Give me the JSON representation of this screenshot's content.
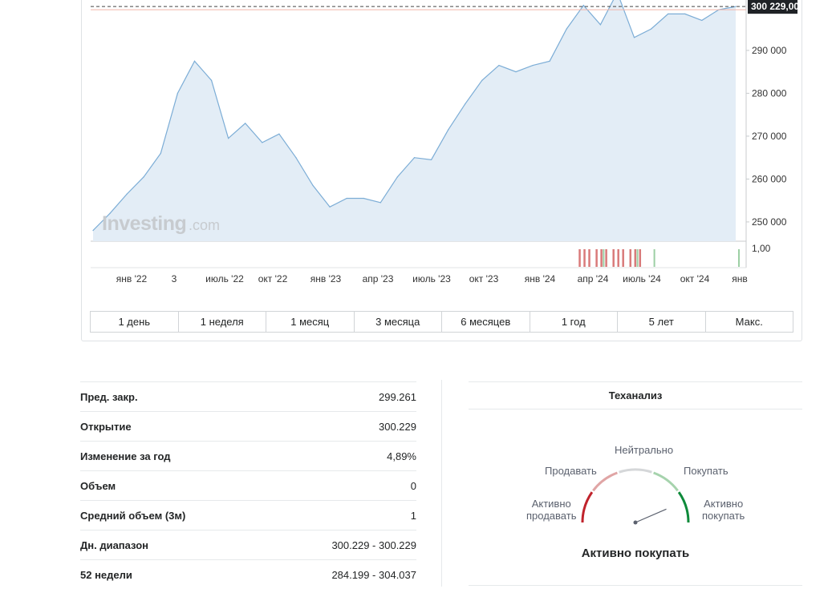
{
  "chart": {
    "current_price_label": "300 229,00",
    "y_ticks": [
      "290 000",
      "280 000",
      "270 000",
      "260 000",
      "250 000"
    ],
    "volume_tick": "1,00",
    "x_ticks": [
      "янв '22",
      "3",
      "июль '22",
      "окт '22",
      "янв '23",
      "апр '23",
      "июль '23",
      "окт '23",
      "янв '24",
      "апр '24",
      "июль '24",
      "окт '24",
      "янв"
    ],
    "watermark": "Investing",
    "watermark_suffix": ".com",
    "colors": {
      "line": "#7cadd6",
      "area": "#e3edf6",
      "up_bar": "#9ccfa4",
      "down_bar": "#d97a7a",
      "price_label_bg": "#1f2226"
    }
  },
  "chart_data": {
    "type": "area",
    "x": [
      "2021-11",
      "2021-12",
      "2022-01",
      "2022-02",
      "2022-03",
      "2022-04",
      "2022-05",
      "2022-06",
      "2022-07",
      "2022-08",
      "2022-09",
      "2022-10",
      "2022-11",
      "2022-12",
      "2023-01",
      "2023-02",
      "2023-03",
      "2023-04",
      "2023-05",
      "2023-06",
      "2023-07",
      "2023-08",
      "2023-09",
      "2023-10",
      "2023-11",
      "2023-12",
      "2024-01",
      "2024-02",
      "2024-03",
      "2024-04",
      "2024-05",
      "2024-06",
      "2024-07",
      "2024-08",
      "2024-09",
      "2024-10",
      "2024-11",
      "2024-12",
      "2025-01"
    ],
    "series": [
      {
        "values": [
          248000,
          252000,
          256500,
          260500,
          266000,
          280000,
          287500,
          283000,
          269500,
          273000,
          268500,
          270500,
          265000,
          258500,
          253500,
          255500,
          255500,
          254500,
          260500,
          265000,
          264500,
          271500,
          277500,
          283000,
          286500,
          285000,
          286500,
          287500,
          295000,
          300500,
          296000,
          303500,
          293000,
          295000,
          298500,
          298500,
          297000,
          299500,
          300229
        ]
      }
    ],
    "y_ticks": [
      250000,
      260000,
      270000,
      280000,
      290000
    ],
    "ylim": [
      245500,
      302500
    ],
    "grid": false,
    "current_value": 300229,
    "volume_indicator": {
      "y_ticks": [
        1.0
      ],
      "down_months": [
        "2024-04",
        "2024-05",
        "2024-06",
        "2024-07"
      ],
      "up_months": [
        "2024-05",
        "2024-07",
        "2024-08",
        "2025-01"
      ]
    }
  },
  "periods": [
    "1 день",
    "1 неделя",
    "1 месяц",
    "3 месяца",
    "6 месяцев",
    "1 год",
    "5 лет",
    "Макс."
  ],
  "stats": [
    {
      "label": "Пред. закр.",
      "value": "299.261"
    },
    {
      "label": "Открытие",
      "value": "300.229"
    },
    {
      "label": "Изменение за год",
      "value": "4,89%"
    },
    {
      "label": "Объем",
      "value": "0"
    },
    {
      "label": "Средний объем (3м)",
      "value": "1"
    },
    {
      "label": "Дн. диапазон",
      "value": "300.229 - 300.229"
    },
    {
      "label": "52 недели",
      "value": "284.199 - 304.037"
    }
  ],
  "tech": {
    "title": "Теханализ",
    "labels": {
      "neutral": "Нейтрально",
      "sell": "Продавать",
      "buy": "Покупать",
      "strong_sell_line1": "Активно",
      "strong_sell_line2": "продавать",
      "strong_buy_line1": "Активно",
      "strong_buy_line2": "покупать"
    },
    "result": "Активно покупать",
    "gauge_level": 0.87,
    "colors": {
      "strong_sell": "#c0232c",
      "sell": "#e0a5a5",
      "neutral": "#d5d7d9",
      "buy": "#a6d3ad",
      "strong_buy": "#0e8a3a"
    }
  }
}
